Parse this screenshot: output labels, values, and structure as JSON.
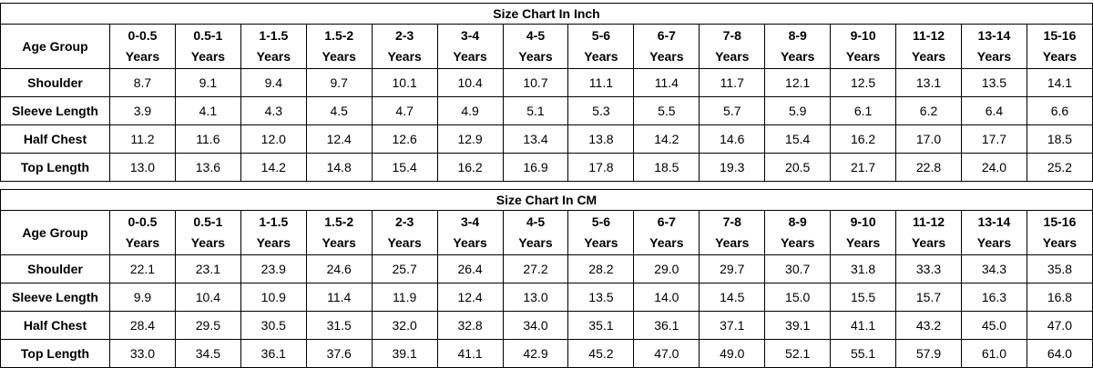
{
  "tables": [
    {
      "title": "Size Chart In Inch",
      "header_label": "Age Group",
      "age_groups": [
        {
          "range": "0-0.5",
          "unit": "Years"
        },
        {
          "range": "0.5-1",
          "unit": "Years"
        },
        {
          "range": "1-1.5",
          "unit": "Years"
        },
        {
          "range": "1.5-2",
          "unit": "Years"
        },
        {
          "range": "2-3",
          "unit": "Years"
        },
        {
          "range": "3-4",
          "unit": "Years"
        },
        {
          "range": "4-5",
          "unit": "Years"
        },
        {
          "range": "5-6",
          "unit": "Years"
        },
        {
          "range": "6-7",
          "unit": "Years"
        },
        {
          "range": "7-8",
          "unit": "Years"
        },
        {
          "range": "8-9",
          "unit": "Years"
        },
        {
          "range": "9-10",
          "unit": "Years"
        },
        {
          "range": "11-12",
          "unit": "Years"
        },
        {
          "range": "13-14",
          "unit": "Years"
        },
        {
          "range": "15-16",
          "unit": "Years"
        }
      ],
      "rows": [
        {
          "label": "Shoulder",
          "values": [
            "8.7",
            "9.1",
            "9.4",
            "9.7",
            "10.1",
            "10.4",
            "10.7",
            "11.1",
            "11.4",
            "11.7",
            "12.1",
            "12.5",
            "13.1",
            "13.5",
            "14.1"
          ]
        },
        {
          "label": "Sleeve Length",
          "values": [
            "3.9",
            "4.1",
            "4.3",
            "4.5",
            "4.7",
            "4.9",
            "5.1",
            "5.3",
            "5.5",
            "5.7",
            "5.9",
            "6.1",
            "6.2",
            "6.4",
            "6.6"
          ]
        },
        {
          "label": "Half Chest",
          "values": [
            "11.2",
            "11.6",
            "12.0",
            "12.4",
            "12.6",
            "12.9",
            "13.4",
            "13.8",
            "14.2",
            "14.6",
            "15.4",
            "16.2",
            "17.0",
            "17.7",
            "18.5"
          ]
        },
        {
          "label": "Top Length",
          "values": [
            "13.0",
            "13.6",
            "14.2",
            "14.8",
            "15.4",
            "16.2",
            "16.9",
            "17.8",
            "18.5",
            "19.3",
            "20.5",
            "21.7",
            "22.8",
            "24.0",
            "25.2"
          ]
        }
      ]
    },
    {
      "title": "Size Chart In CM",
      "header_label": "Age Group",
      "age_groups": [
        {
          "range": "0-0.5",
          "unit": "Years"
        },
        {
          "range": "0.5-1",
          "unit": "Years"
        },
        {
          "range": "1-1.5",
          "unit": "Years"
        },
        {
          "range": "1.5-2",
          "unit": "Years"
        },
        {
          "range": "2-3",
          "unit": "Years"
        },
        {
          "range": "3-4",
          "unit": "Years"
        },
        {
          "range": "4-5",
          "unit": "Years"
        },
        {
          "range": "5-6",
          "unit": "Years"
        },
        {
          "range": "6-7",
          "unit": "Years"
        },
        {
          "range": "7-8",
          "unit": "Years"
        },
        {
          "range": "8-9",
          "unit": "Years"
        },
        {
          "range": "9-10",
          "unit": "Years"
        },
        {
          "range": "11-12",
          "unit": "Years"
        },
        {
          "range": "13-14",
          "unit": "Years"
        },
        {
          "range": "15-16",
          "unit": "Years"
        }
      ],
      "rows": [
        {
          "label": "Shoulder",
          "values": [
            "22.1",
            "23.1",
            "23.9",
            "24.6",
            "25.7",
            "26.4",
            "27.2",
            "28.2",
            "29.0",
            "29.7",
            "30.7",
            "31.8",
            "33.3",
            "34.3",
            "35.8"
          ]
        },
        {
          "label": "Sleeve Length",
          "values": [
            "9.9",
            "10.4",
            "10.9",
            "11.4",
            "11.9",
            "12.4",
            "13.0",
            "13.5",
            "14.0",
            "14.5",
            "15.0",
            "15.5",
            "15.7",
            "16.3",
            "16.8"
          ]
        },
        {
          "label": "Half Chest",
          "values": [
            "28.4",
            "29.5",
            "30.5",
            "31.5",
            "32.0",
            "32.8",
            "34.0",
            "35.1",
            "36.1",
            "37.1",
            "39.1",
            "41.1",
            "43.2",
            "45.0",
            "47.0"
          ]
        },
        {
          "label": "Top Length",
          "values": [
            "33.0",
            "34.5",
            "36.1",
            "37.6",
            "39.1",
            "41.1",
            "42.9",
            "45.2",
            "47.0",
            "49.0",
            "52.1",
            "55.1",
            "57.9",
            "61.0",
            "64.0"
          ]
        }
      ]
    }
  ]
}
